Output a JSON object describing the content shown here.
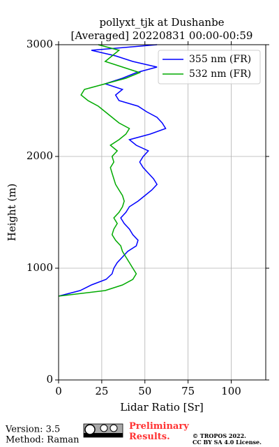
{
  "chart_data": {
    "type": "line",
    "title": "pollyxt_tjk at Dushanbe",
    "subtitle": "[Averaged] 20220831 00:00-00:59",
    "x_label": "Lidar Ratio [Sr]",
    "y_label": "Height (m)",
    "xlim": [
      0,
      120
    ],
    "xticks": [
      0,
      25,
      50,
      75,
      100
    ],
    "ylim": [
      0,
      3000
    ],
    "yticks": [
      0,
      1000,
      2000,
      3000
    ],
    "grid": true,
    "legend": "upper right",
    "y": [
      750,
      800,
      850,
      900,
      950,
      1000,
      1050,
      1100,
      1150,
      1200,
      1250,
      1300,
      1350,
      1400,
      1450,
      1500,
      1550,
      1600,
      1650,
      1700,
      1750,
      1800,
      1850,
      1900,
      1950,
      2000,
      2050,
      2100,
      2150,
      2200,
      2250,
      2300,
      2350,
      2400,
      2450,
      2500,
      2550,
      2600,
      2650,
      2700,
      2750,
      2800,
      2850,
      2900,
      2950,
      3000
    ],
    "series": [
      {
        "name": "355 nm (FR)",
        "color": "#0000ff",
        "values": [
          0,
          12.5,
          19,
          27.5,
          31,
          32,
          34,
          37,
          40,
          45,
          46,
          43,
          41,
          38,
          36,
          39,
          41,
          46,
          50,
          54,
          57,
          55,
          52,
          49,
          47,
          49,
          52,
          45,
          41,
          53,
          62,
          60,
          57,
          51,
          46,
          35,
          33,
          37,
          27,
          37,
          45,
          57,
          43,
          33,
          19,
          57
        ]
      },
      {
        "name": "532 nm (FR)",
        "color": "#00aa00",
        "values": [
          0,
          27,
          37,
          43,
          45,
          43,
          41,
          39,
          37,
          36,
          33,
          31,
          32,
          34,
          32,
          35,
          37,
          38,
          37,
          35,
          33,
          32,
          31,
          30,
          32,
          31,
          34,
          30,
          35,
          39,
          41,
          35,
          31,
          27,
          23,
          17,
          13,
          15,
          27,
          39,
          47,
          37,
          27,
          31,
          35,
          23
        ]
      }
    ]
  },
  "footer": {
    "version": "Version: 3.5",
    "method": "Method: Raman",
    "preliminary": "Preliminary Results.",
    "copyright": "© TROPOS 2022.",
    "license": "CC BY SA 4.0 License."
  }
}
